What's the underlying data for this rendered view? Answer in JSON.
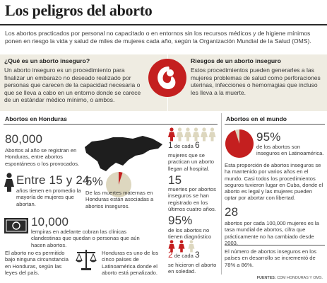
{
  "title": "Los peligros del aborto",
  "intro": "Los abortos practicados por personal no capacitado o en entornos sin los recursos médicos y de higiene mínimos ponen en riesgo la vida y salud de miles de mujeres cada año, según la Organización Mundial de la Salud (OMS).",
  "definition": {
    "heading": "¿Qué es un aborto inseguro?",
    "text": "Un aborto inseguro es un procedimiento para finalizar un embarazo no deseado realizado por personas que carecen de la capacidad necesaria o que se lleva a cabo en un entorno donde se carece de un estándar médico mínimo, o ambos."
  },
  "risks": {
    "heading": "Riesgos de un aborto inseguro",
    "text": "Estos procedimientos pueden generarles a las mujeres problemas de salud como perforaciones uterinas, infecciones o hemorragias que incluso les lleva a la muerte."
  },
  "honduras": {
    "heading": "Abortos en Honduras",
    "stat1_value": "80,000",
    "stat1_text": "Abortos al año se registran en Honduras, entre abortos espontáneos o los provocados.",
    "stat2_value": "Entre 15 y 24",
    "stat2_text": "años tienen en promedio la mayoría de mujeres que abortan.",
    "stat3_value": "5%",
    "stat3_text": "De las muertes maternas en Honduras están asociadas a abortos inseguros.",
    "stat3_fraction": 0.05,
    "stat4_value": "10,000",
    "stat4_text": "lempiras en adelante cobran las clínicas clandestinas que quedan o personas que aún hacen abortos.",
    "stat5_text": "El aborto no es permitido bajo ninguna circunstancia en Honduras, según las leyes del país.",
    "stat6_text": "Honduras es uno de los cinco países de Latinoamérica donde el aborto está penalizado.",
    "ratio1_lead": "1",
    "ratio1_mid": " de cada ",
    "ratio1_total": "6",
    "ratio1_text": "mujeres que se practican un aborto llegan al hospital.",
    "ratio1_red": 1,
    "ratio1_count": 6,
    "deaths_value": "15",
    "deaths_text": "muertes por abortos inseguros se han registrado en los últimos cuatro años.",
    "undiag_value": "95%",
    "undiag_text": "de los abortos no tienen diagnóstico",
    "ratio2_lead": "2",
    "ratio2_mid": " de cada ",
    "ratio2_total": "3",
    "ratio2_text": "se hicieron el aborto en soledad.",
    "ratio2_red": 2,
    "ratio2_count": 3
  },
  "world": {
    "heading": "Abortos en el mundo",
    "pie_value": "95%",
    "pie_text": "de los abortos son inseguros en Latinoamérica.",
    "pie_fraction": 0.95,
    "para1": "Esta proporción de abortos inseguros se ha mantenido por varios años en el mundo. Casi todos los procedimientos seguros tuvieron lugar en Cuba, donde el aborto es legal y las mujeres pueden optar por abortar con libertad.",
    "stat_value": "28",
    "stat_text": "abortos por cada 100,000 mujeres es la tasa mundial de abortos, cifra que prácticamente no ha cambiado desde 2003.",
    "para2": "El número de abortos inseguros en los países en desarrollo se incrementó de 78% a 86%."
  },
  "source_label": "FUENTES:",
  "source_text": " CDM HONDURAS Y OMS.",
  "colors": {
    "accent": "#c41f1f",
    "box": "#efece2",
    "muted": "#ddd7bf"
  }
}
